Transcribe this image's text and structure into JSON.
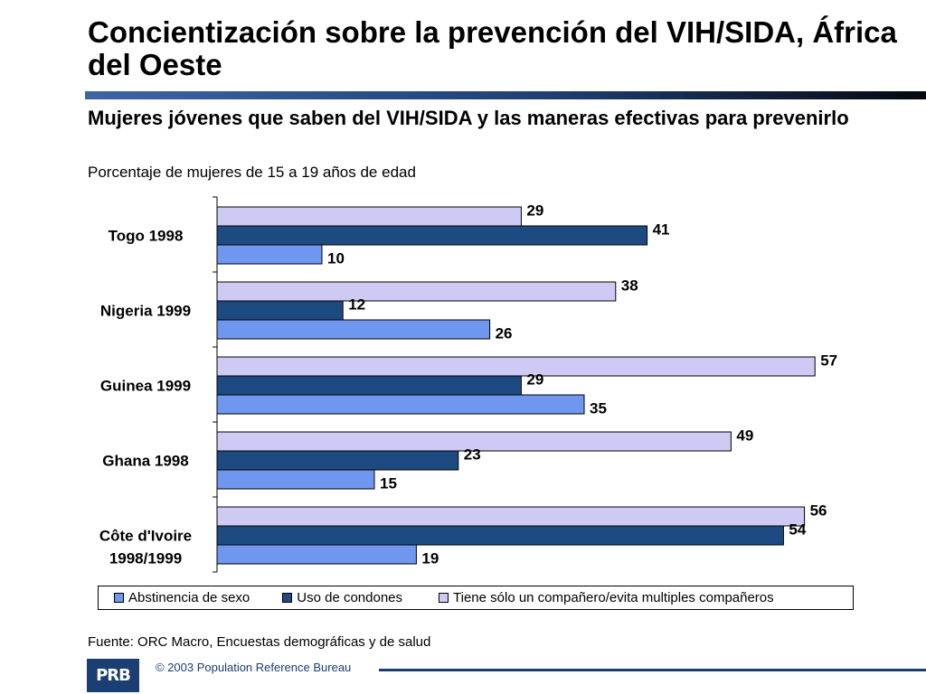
{
  "title": "Concientización sobre la prevención del VIH/SIDA, África del Oeste",
  "subtitle": "Mujeres jóvenes que saben del VIH/SIDA y las maneras efectivas para prevenirlo",
  "note": "Porcentaje de mujeres de 15 a 19 años de edad",
  "source": "Fuente: ORC Macro, Encuestas demográficas y de salud",
  "copyright": "© 2003 Population Reference Bureau",
  "logo_text": "PRB",
  "colors": {
    "title_bar": "#1f3f73",
    "abstinencia": "#6f97ef",
    "condones": "#1e4a82",
    "pareja": "#cfcaf4",
    "footer": "#1b3f73"
  },
  "chart_data": {
    "type": "bar",
    "orientation": "horizontal",
    "categories": [
      "Togo 1998",
      "Nigeria 1999",
      "Guinea 1999",
      "Ghana 1998",
      "Côte d'Ivoire 1998/1999"
    ],
    "series": [
      {
        "name": "Tiene sólo un compañero/evita multiples compañeros",
        "values": [
          29,
          38,
          57,
          49,
          56
        ]
      },
      {
        "name": "Uso de condones",
        "values": [
          41,
          12,
          29,
          23,
          54
        ]
      },
      {
        "name": "Abstinencia de sexo",
        "values": [
          10,
          26,
          35,
          15,
          19
        ]
      }
    ],
    "legend": [
      "Abstinencia de sexo",
      "Uso de condones",
      "Tiene sólo un compañero/evita multiples compañeros"
    ],
    "legend_position": "bottom",
    "xlim": [
      0,
      60
    ],
    "grid": false
  }
}
